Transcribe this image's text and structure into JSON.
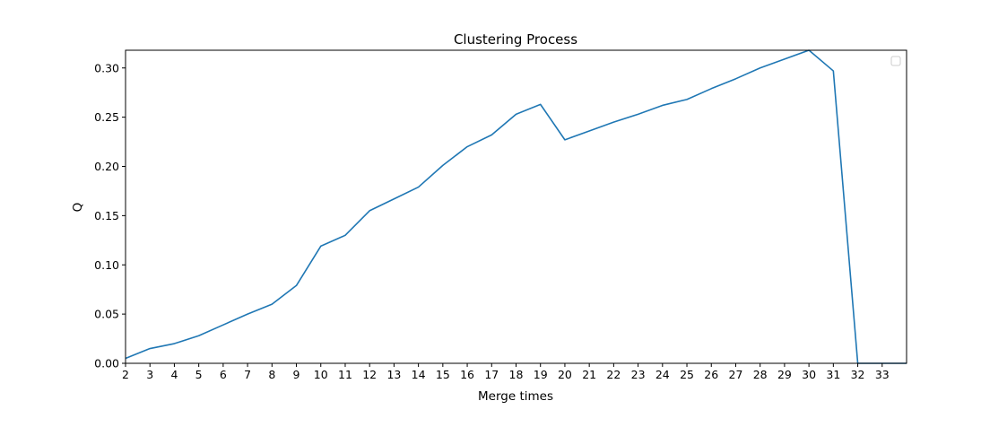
{
  "chart_data": {
    "type": "line",
    "title": "Clustering Process",
    "xlabel": "Merge times",
    "ylabel": "Q",
    "xlim": [
      2,
      34
    ],
    "ylim": [
      0,
      0.318
    ],
    "x_ticks": [
      2,
      3,
      4,
      5,
      6,
      7,
      8,
      9,
      10,
      11,
      12,
      13,
      14,
      15,
      16,
      17,
      18,
      19,
      20,
      21,
      22,
      23,
      24,
      25,
      26,
      27,
      28,
      29,
      30,
      31,
      32,
      33
    ],
    "y_ticks": [
      0.0,
      0.05,
      0.1,
      0.15,
      0.2,
      0.25,
      0.3
    ],
    "y_tick_labels": [
      "0.00",
      "0.05",
      "0.10",
      "0.15",
      "0.20",
      "0.25",
      "0.30"
    ],
    "grid": false,
    "legend": "top-right",
    "series": [
      {
        "color": "#1f77b4",
        "x": [
          2,
          3,
          4,
          5,
          6,
          7,
          8,
          9,
          10,
          11,
          12,
          13,
          14,
          15,
          16,
          17,
          18,
          19,
          20,
          21,
          22,
          23,
          24,
          25,
          26,
          27,
          28,
          29,
          30,
          31,
          32,
          33,
          34
        ],
        "y": [
          0.005,
          0.015,
          0.02,
          0.028,
          0.039,
          0.05,
          0.06,
          0.079,
          0.119,
          0.13,
          0.155,
          0.167,
          0.179,
          0.201,
          0.22,
          0.232,
          0.253,
          0.263,
          0.227,
          0.236,
          0.245,
          0.253,
          0.262,
          0.268,
          0.279,
          0.289,
          0.3,
          0.309,
          0.318,
          0.297,
          0.0,
          0.0,
          0.0
        ]
      }
    ]
  }
}
